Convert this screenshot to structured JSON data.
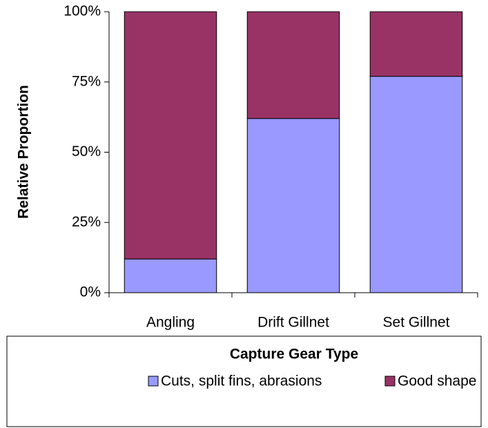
{
  "chart_data": {
    "type": "stacked_bar",
    "x_label": "Capture Gear Type",
    "y_label": "Relative Proportion",
    "categories": [
      "Angling",
      "Drift Gillnet",
      "Set Gillnet"
    ],
    "series": [
      {
        "name": "Cuts, split fins, abrasions",
        "color": "#9999ff",
        "values": [
          12,
          62,
          77
        ]
      },
      {
        "name": "Good shape",
        "color": "#993366",
        "values": [
          88,
          38,
          23
        ]
      }
    ],
    "ylim": [
      0,
      100
    ],
    "yticks": [
      {
        "value": 0,
        "label": "0%"
      },
      {
        "value": 25,
        "label": "25%"
      },
      {
        "value": 50,
        "label": "50%"
      },
      {
        "value": 75,
        "label": "75%"
      },
      {
        "value": 100,
        "label": "100%"
      }
    ],
    "legend": "bottom"
  }
}
